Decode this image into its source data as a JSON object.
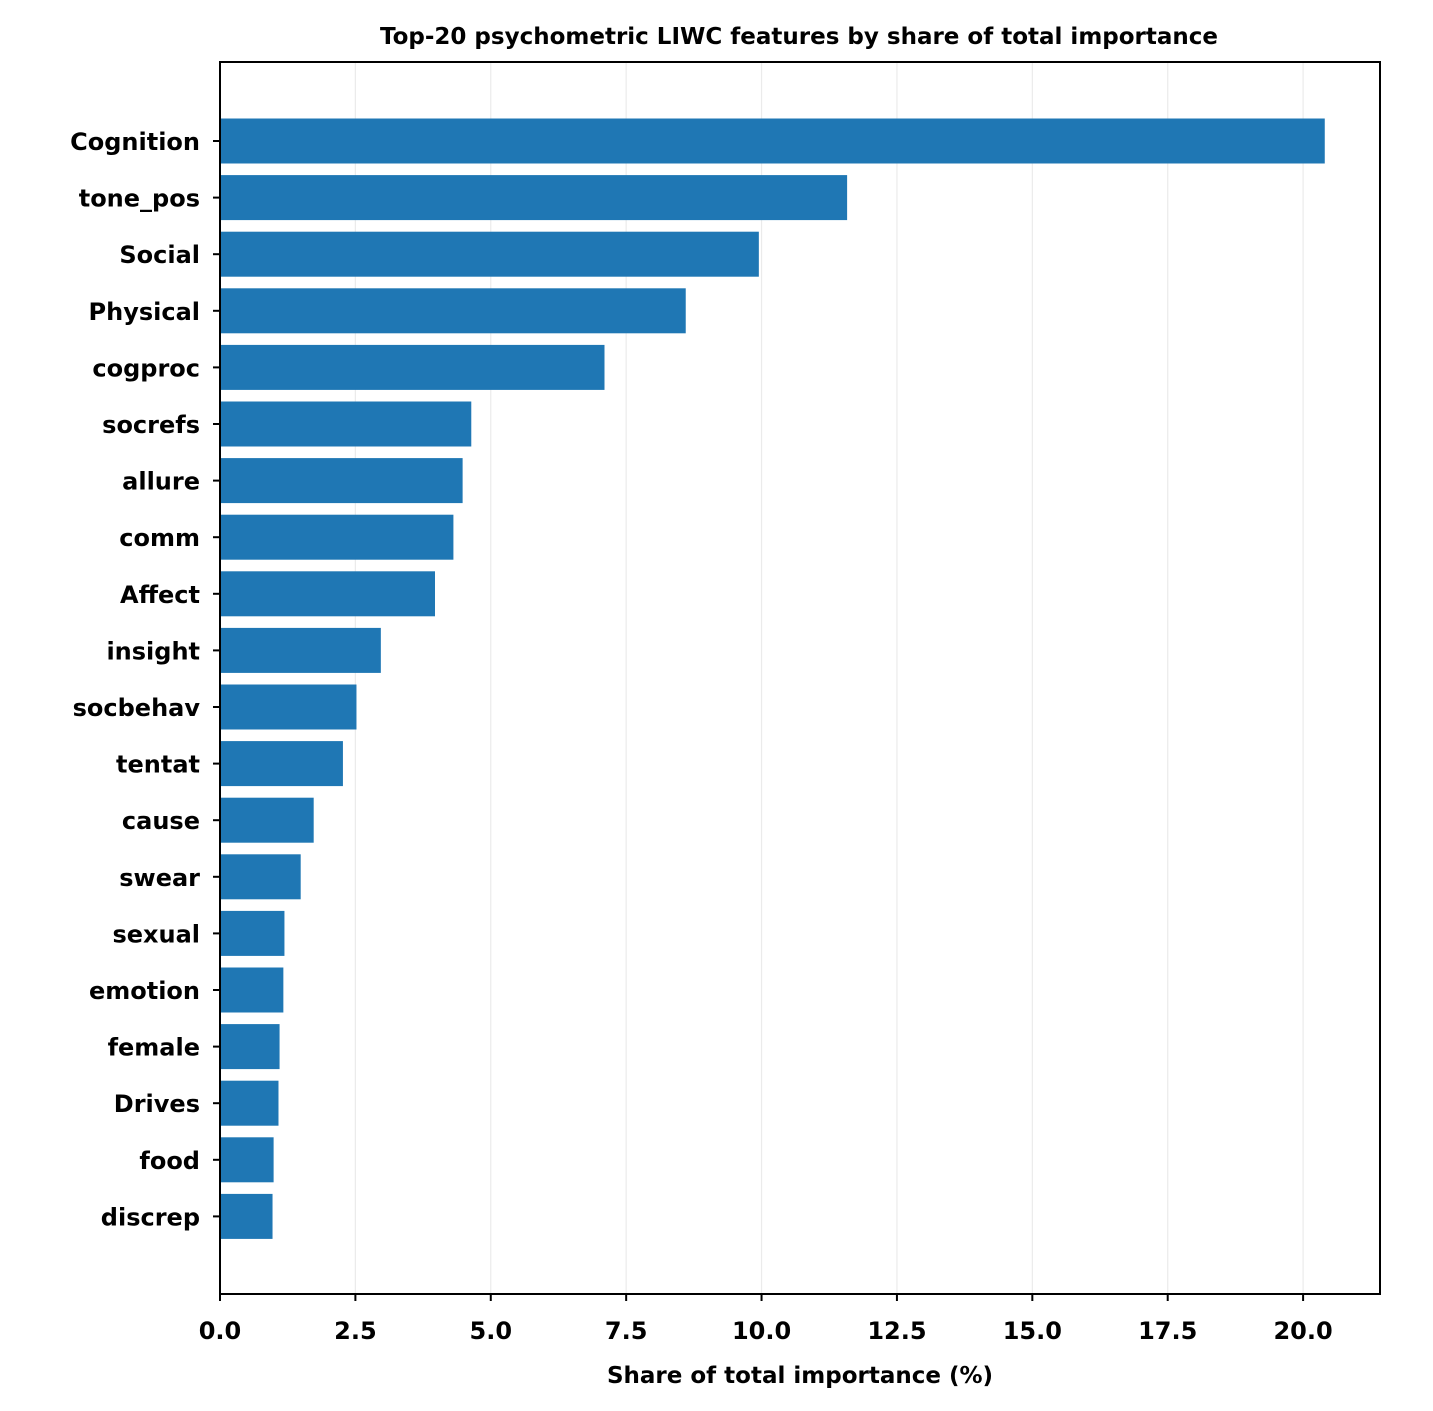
{
  "chart_data": {
    "type": "bar",
    "orientation": "horizontal",
    "title": "Top-20 psychometric  LIWC features by share of total importance",
    "xlabel": "Share of total importance (%)",
    "ylabel": "",
    "categories": [
      "Cognition",
      "tone_pos",
      "Social",
      "Physical",
      "cogproc",
      "socrefs",
      "allure",
      "comm",
      "Affect",
      "insight",
      "socbehav",
      "tentat",
      "cause",
      "swear",
      "sexual",
      "emotion",
      "female",
      "Drives",
      "food",
      "discrep"
    ],
    "values": [
      20.4,
      11.58,
      9.95,
      8.6,
      7.1,
      4.64,
      4.48,
      4.31,
      3.97,
      2.97,
      2.52,
      2.27,
      1.73,
      1.49,
      1.19,
      1.17,
      1.1,
      1.08,
      0.99,
      0.97
    ],
    "xlim": [
      0,
      21.42
    ],
    "xticks": [
      "0.0",
      "2.5",
      "5.0",
      "7.5",
      "10.0",
      "12.5",
      "15.0",
      "17.5",
      "20.0"
    ],
    "grid": "x",
    "legend": "none",
    "colors": {
      "bar": "#1f77b4",
      "grid": "#ebebeb",
      "axis": "#000000"
    }
  }
}
